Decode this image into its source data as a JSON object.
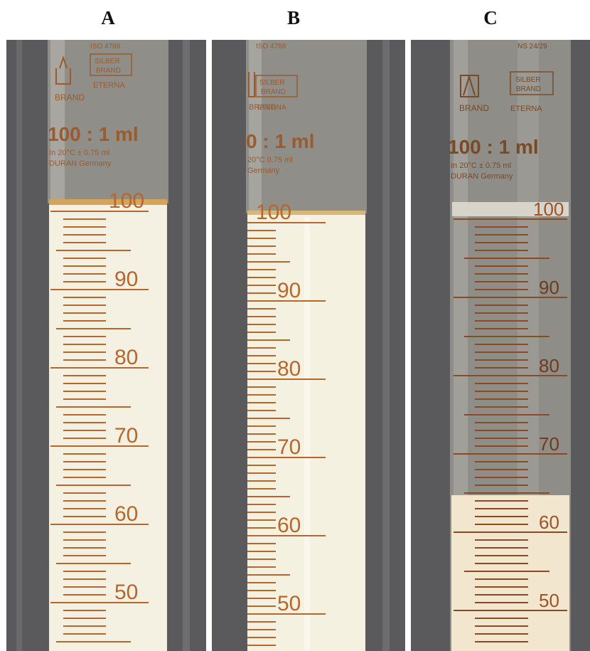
{
  "figure": {
    "panels": [
      {
        "letter": "A",
        "printed": {
          "iso": "ISO 4788",
          "brand": "BRAND",
          "silber_top": "SILBER",
          "silber_bottom": "BRAND",
          "eterna": "ETERNA",
          "capacity": "100 : 1 ml",
          "spec": "In 20°C  ± 0.75 ml",
          "origin": "DURAN  Germany"
        },
        "scale_labels": [
          "100",
          "90",
          "80",
          "70",
          "60",
          "50"
        ],
        "fill_level_ml": 100,
        "sediment_level_ml": null,
        "colors": {
          "background": "#5a5a5c",
          "liquid": "#f4f0e2",
          "marking": "#b5672c"
        }
      },
      {
        "letter": "B",
        "printed": {
          "iso": "ISO 4788",
          "brand": "BRAND",
          "silber_top": "SILBER",
          "silber_bottom": "BRAND",
          "eterna": "ETERNA",
          "capacity": "0 : 1 ml",
          "spec": "20°C  0.75 ml",
          "origin": "Germany"
        },
        "scale_labels": [
          "100",
          "90",
          "80",
          "70",
          "60",
          "50"
        ],
        "fill_level_ml": 100,
        "sediment_level_ml": null,
        "colors": {
          "background": "#5a5a5c",
          "liquid": "#f5f1e0",
          "marking": "#b5672c"
        }
      },
      {
        "letter": "C",
        "printed": {
          "iso": "NS 24/29",
          "brand": "BRAND",
          "silber_top": "SILBER",
          "silber_bottom": "BRAND",
          "eterna": "ETERNA",
          "capacity": "100 : 1 ml",
          "spec": "In 20°C  ± 0.75 ml",
          "origin": "DURAN  Germany"
        },
        "scale_labels": [
          "100",
          "90",
          "80",
          "70",
          "60",
          "50"
        ],
        "fill_level_ml": 100,
        "sediment_level_ml": 62,
        "colors": {
          "background": "#5a5a5c",
          "liquid": "#f3e6cf",
          "clear": "#8e8d88",
          "marking": "#9a5426"
        }
      }
    ]
  }
}
